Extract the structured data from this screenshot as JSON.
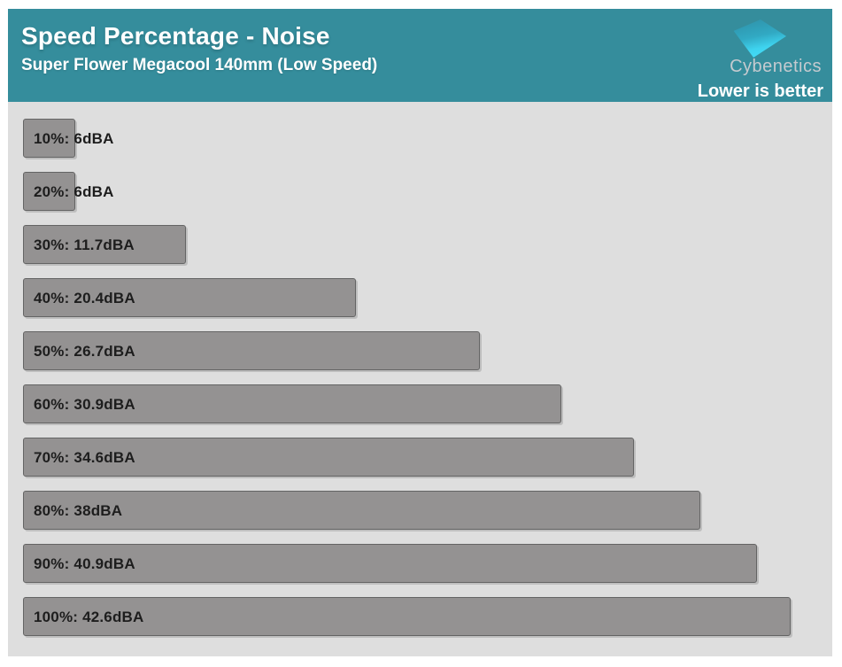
{
  "header": {
    "title": "Speed Percentage - Noise",
    "subtitle": "Super Flower Megacool 140mm (Low Speed)",
    "brand": "Cybenetics",
    "note": "Lower is better"
  },
  "colors": {
    "header_bg": "#358d9c",
    "chart_bg": "#dedede",
    "bar_fill": "#949292",
    "bar_border": "#646464",
    "label_text": "#1d1d1d",
    "brand_text": "#c5cacf",
    "logo_gradient_start": "#2f8fa6",
    "logo_gradient_end": "#46e0fa"
  },
  "chart_data": {
    "type": "bar",
    "orientation": "horizontal",
    "title": "Speed Percentage - Noise",
    "subtitle": "Super Flower Megacool 140mm (Low Speed)",
    "annotation": "Lower is better",
    "categories": [
      "10%",
      "20%",
      "30%",
      "40%",
      "50%",
      "60%",
      "70%",
      "80%",
      "90%",
      "100%"
    ],
    "values": [
      6,
      6,
      11.7,
      20.4,
      26.7,
      30.9,
      34.6,
      38,
      40.9,
      42.6
    ],
    "unit": "dBA",
    "labels": [
      "10%: 6dBA",
      "20%: 6dBA",
      "30%: 11.7dBA",
      "40%: 20.4dBA",
      "50%: 26.7dBA",
      "60%: 30.9dBA",
      "70%: 34.6dBA",
      "80%: 38dBA",
      "90%: 40.9dBA",
      "100%: 42.6dBA"
    ],
    "xlim": [
      3.35,
      44.25
    ],
    "grid": false,
    "legend": false
  }
}
